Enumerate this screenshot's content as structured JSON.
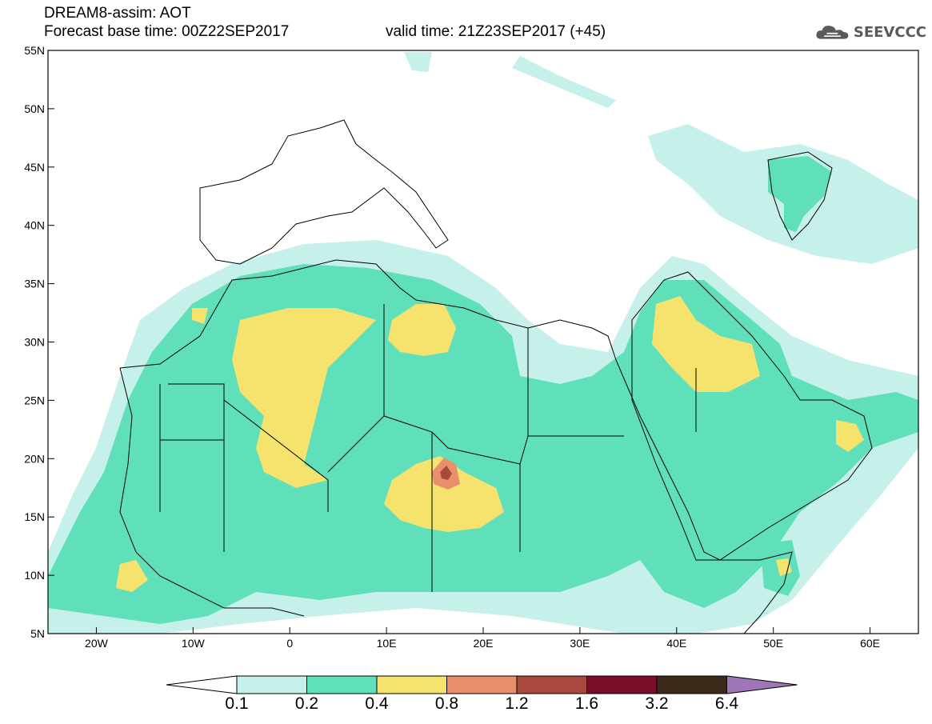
{
  "header": {
    "title_line1": "DREAM8-assim: AOT",
    "title_line2": "Forecast base time: 00Z22SEP2017",
    "valid_time": "valid time: 21Z23SEP2017 (+45)",
    "logo_text": "SEEVCCC",
    "logo_icon": "cloud-icon"
  },
  "map": {
    "lon_range": [
      -25,
      65
    ],
    "lat_range": [
      5,
      55
    ],
    "lon_ticks": [
      "20W",
      "10W",
      "0",
      "10E",
      "20E",
      "30E",
      "40E",
      "50E",
      "60E"
    ],
    "lat_ticks": [
      "5N",
      "10N",
      "15N",
      "20N",
      "25N",
      "30N",
      "35N",
      "40N",
      "45N",
      "50N",
      "55N"
    ],
    "field": "aerosol optical thickness"
  },
  "colorbar": {
    "levels": [
      "0.1",
      "0.2",
      "0.4",
      "0.8",
      "1.2",
      "1.6",
      "3.2",
      "6.4"
    ],
    "colors": {
      "c01": "#c6f0ea",
      "c02": "#5fe0bb",
      "c04": "#f6e36e",
      "c08": "#e9906b",
      "c12": "#a9483c",
      "c16": "#7b0d2a",
      "c32": "#3b2a1a",
      "c64": "#9f77b8"
    }
  }
}
